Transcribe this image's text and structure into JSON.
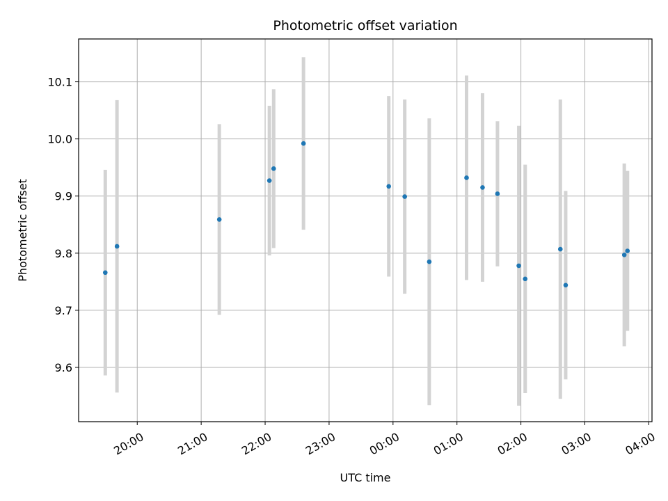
{
  "chart_data": {
    "type": "scatter",
    "title": "Photometric offset variation",
    "xlabel": "UTC time",
    "ylabel": "Photometric offset",
    "x_axis": "time",
    "x_start_time": "19:00",
    "x_ticks": [
      "20:00",
      "21:00",
      "22:00",
      "23:00",
      "00:00",
      "01:00",
      "02:00",
      "03:00",
      "04:00"
    ],
    "y_ticks": [
      9.6,
      9.7,
      9.8,
      9.9,
      10.0,
      10.1
    ],
    "xlim": [
      "19:05",
      "04:03"
    ],
    "ylim": [
      9.505,
      10.175
    ],
    "grid": true,
    "colors": {
      "point": "#1f77b4",
      "errorbar": "#d3d3d3",
      "grid": "#b0b0b0"
    },
    "series": [
      {
        "points": [
          {
            "t": "19:30",
            "y": 9.766,
            "err": 0.18
          },
          {
            "t": "19:41",
            "y": 9.812,
            "err": 0.256
          },
          {
            "t": "21:17",
            "y": 9.859,
            "err": 0.167
          },
          {
            "t": "22:04",
            "y": 9.927,
            "err": 0.131
          },
          {
            "t": "22:08",
            "y": 9.948,
            "err": 0.139
          },
          {
            "t": "22:36",
            "y": 9.992,
            "err": 0.151
          },
          {
            "t": "23:56",
            "y": 9.917,
            "err": 0.158
          },
          {
            "t": "00:11",
            "y": 9.899,
            "err": 0.17
          },
          {
            "t": "00:34",
            "y": 9.785,
            "err": 0.251
          },
          {
            "t": "01:09",
            "y": 9.932,
            "err": 0.179
          },
          {
            "t": "01:24",
            "y": 9.915,
            "err": 0.165
          },
          {
            "t": "01:38",
            "y": 9.904,
            "err": 0.127
          },
          {
            "t": "01:58",
            "y": 9.778,
            "err": 0.245
          },
          {
            "t": "02:04",
            "y": 9.755,
            "err": 0.2
          },
          {
            "t": "02:37",
            "y": 9.807,
            "err": 0.262
          },
          {
            "t": "02:42",
            "y": 9.744,
            "err": 0.165
          },
          {
            "t": "03:37",
            "y": 9.797,
            "err": 0.16
          },
          {
            "t": "03:40",
            "y": 9.804,
            "err": 0.14
          }
        ]
      }
    ]
  }
}
